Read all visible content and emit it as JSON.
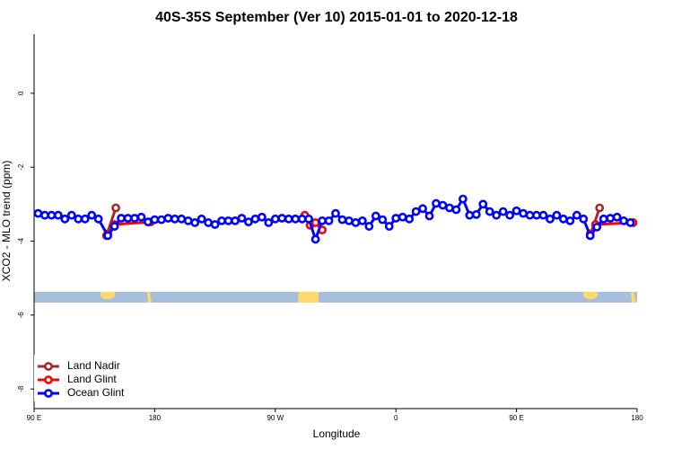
{
  "chart_data": {
    "type": "line",
    "title": "40S-35S September (Ver 10)   2015-01-01 to 2020-12-18",
    "x_label": "Longitude",
    "y_label": "XCO2 - MLO trend (ppm)",
    "xlim": [
      90,
      540
    ],
    "xticks": [
      {
        "value": 90,
        "label": "90 E"
      },
      180,
      {
        "value": 270,
        "label": "90 W"
      },
      {
        "value": 360,
        "label": "0"
      },
      {
        "value": 450,
        "label": "90 E"
      },
      {
        "value": 540,
        "label": "180"
      }
    ],
    "ylim": [
      -8.53,
      1.6
    ],
    "yticks": [
      0,
      -2,
      -4,
      -6,
      -8
    ],
    "legend": "bottom-left",
    "series": [
      {
        "name": "Land Nadir",
        "color": "#a52a2a",
        "x": [
          144,
          151,
          330,
          505,
          512
        ],
        "values": [
          -3.85,
          -3.1,
          null,
          -3.85,
          -3.1
        ]
      },
      {
        "name": "Land Glint",
        "color": "#ff0000",
        "x": [
          145,
          150,
          177,
          235,
          292,
          296,
          300,
          305,
          400,
          505,
          509,
          537
        ],
        "values": [
          -3.8,
          -3.55,
          -3.48,
          null,
          -3.3,
          -3.57,
          -3.5,
          -3.7,
          null,
          -3.8,
          -3.55,
          -3.5
        ]
      },
      {
        "name": "Ocean Glint",
        "color": "#0000ff",
        "x": [
          93,
          98,
          103,
          108,
          113,
          118,
          123,
          128,
          133,
          138,
          145,
          150,
          155,
          160,
          165,
          170,
          175,
          180,
          185,
          190,
          195,
          200,
          205,
          210,
          215,
          220,
          225,
          230,
          235,
          240,
          245,
          250,
          255,
          260,
          265,
          270,
          275,
          280,
          285,
          290,
          295,
          300,
          305,
          310,
          315,
          320,
          325,
          330,
          335,
          340,
          345,
          350,
          355,
          360,
          365,
          370,
          375,
          380,
          385,
          390,
          395,
          400,
          405,
          410,
          415,
          420,
          425,
          430,
          435,
          440,
          445,
          450,
          455,
          460,
          465,
          470,
          475,
          480,
          485,
          490,
          495,
          500,
          505,
          510,
          515,
          520,
          525,
          530,
          535
        ],
        "values": [
          -3.25,
          -3.3,
          -3.3,
          -3.3,
          -3.4,
          -3.3,
          -3.4,
          -3.4,
          -3.3,
          -3.4,
          -3.85,
          -3.6,
          -3.38,
          -3.38,
          -3.38,
          -3.35,
          -3.48,
          -3.42,
          -3.42,
          -3.38,
          -3.4,
          -3.4,
          -3.45,
          -3.5,
          -3.4,
          -3.5,
          -3.55,
          -3.45,
          -3.45,
          -3.45,
          -3.38,
          -3.48,
          -3.4,
          -3.35,
          -3.5,
          -3.4,
          -3.38,
          -3.4,
          -3.4,
          -3.4,
          -3.4,
          -3.95,
          -3.45,
          -3.45,
          -3.25,
          -3.42,
          -3.45,
          -3.5,
          -3.45,
          -3.6,
          -3.32,
          -3.42,
          -3.6,
          -3.38,
          -3.35,
          -3.4,
          -3.2,
          -3.12,
          -3.32,
          -2.98,
          -3.03,
          -3.1,
          -3.15,
          -2.86,
          -3.3,
          -3.28,
          -3.0,
          -3.2,
          -3.3,
          -3.2,
          -3.3,
          -3.18,
          -3.25,
          -3.3,
          -3.3,
          -3.3,
          -3.4,
          -3.3,
          -3.4,
          -3.45,
          -3.3,
          -3.4,
          -3.85,
          -3.62,
          -3.4,
          -3.38,
          -3.35,
          -3.45,
          -3.5
        ]
      }
    ]
  }
}
